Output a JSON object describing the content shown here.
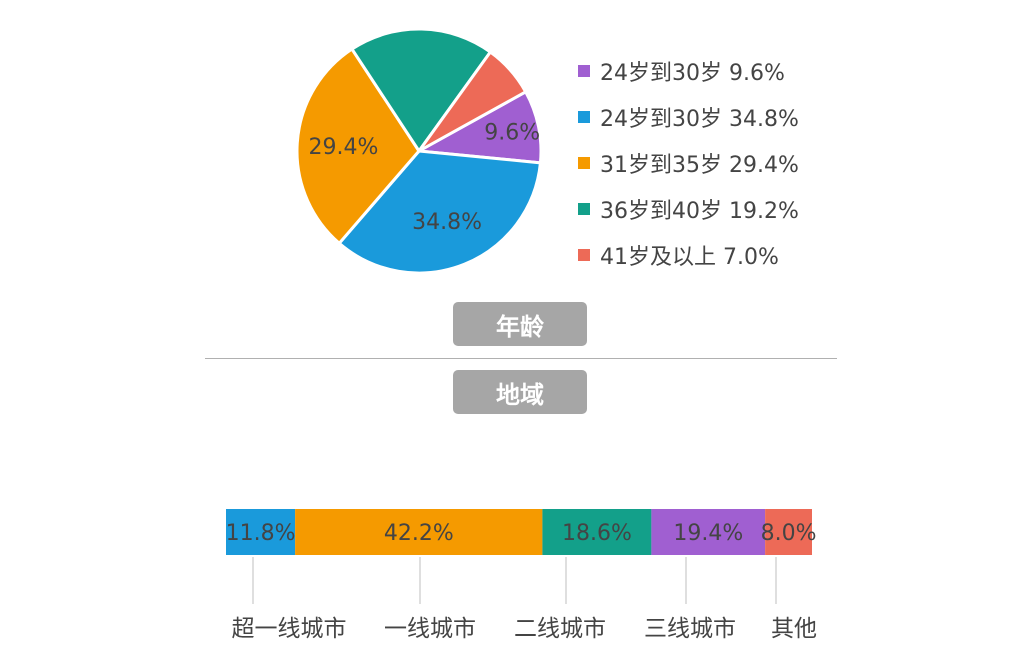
{
  "colors": {
    "purple": "#a05fd1",
    "blue": "#1a9adb",
    "orange": "#f59a00",
    "teal": "#13a08a",
    "red": "#ed6a57"
  },
  "sections": {
    "age": "年龄",
    "region": "地域"
  },
  "chart_data": [
    {
      "type": "pie",
      "categories": [
        "24岁到30岁",
        "24岁到30岁",
        "31岁到35岁",
        "36岁到40岁",
        "41岁及以上"
      ],
      "values": [
        9.6,
        34.8,
        29.4,
        19.2,
        7.0
      ],
      "data_labels": [
        "9.6%",
        "34.8%",
        "29.4%",
        "",
        ""
      ],
      "legend_labels": [
        "24岁到30岁 9.6%",
        "24岁到30岁 34.8%",
        "31岁到35岁 29.4%",
        "36岁到40岁 19.2%",
        "41岁及以上 7.0%"
      ],
      "colors": [
        "#a05fd1",
        "#1a9adb",
        "#f59a00",
        "#13a08a",
        "#ed6a57"
      ],
      "legend_position": "right"
    },
    {
      "type": "bar",
      "orientation": "horizontal-stacked-100",
      "categories": [
        "超一线城市",
        "一线城市",
        "二线城市",
        "三线城市",
        "其他"
      ],
      "values": [
        11.8,
        42.2,
        18.6,
        19.4,
        8.0
      ],
      "data_labels": [
        "11.8%",
        "42.2%",
        "18.6%",
        "19.4%",
        "8.0%"
      ],
      "colors": [
        "#1a9adb",
        "#f59a00",
        "#13a08a",
        "#a05fd1",
        "#ed6a57"
      ]
    }
  ]
}
